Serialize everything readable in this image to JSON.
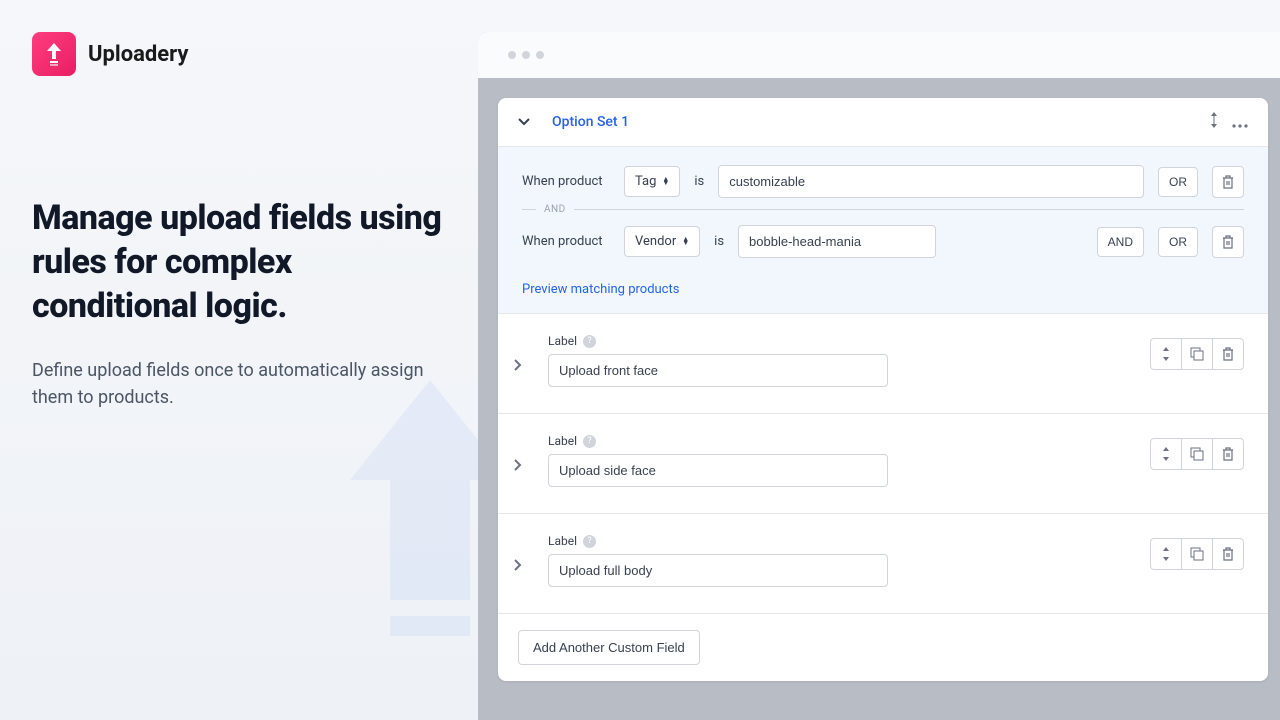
{
  "brand": {
    "name": "Uploadery",
    "logo_bg": "#e91e63"
  },
  "marketing": {
    "headline": "Manage upload fields using rules for complex conditional logic.",
    "subhead": "Define upload fields once to automatically assign them to products."
  },
  "card": {
    "title": "Option Set 1",
    "preview_link": "Preview matching products",
    "add_button": "Add Another Custom Field"
  },
  "rules": [
    {
      "prefix": "When product",
      "selector": "Tag",
      "op": "is",
      "value": "customizable",
      "buttons": [
        "OR"
      ]
    },
    {
      "prefix": "When product",
      "selector": "Vendor",
      "op": "is",
      "value": "bobble-head-mania",
      "buttons": [
        "AND",
        "OR"
      ]
    }
  ],
  "and_label": "AND",
  "fields": [
    {
      "label": "Label",
      "value": "Upload front face"
    },
    {
      "label": "Label",
      "value": "Upload side face"
    },
    {
      "label": "Label",
      "value": "Upload full body"
    }
  ],
  "colors": {
    "link": "#2563eb",
    "rules_bg": "#f1f7fc",
    "text": "#374151",
    "muted": "#6b7280"
  }
}
